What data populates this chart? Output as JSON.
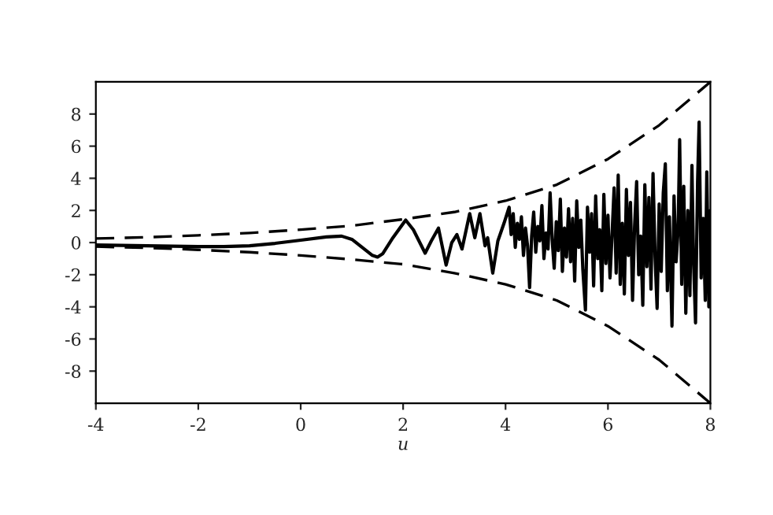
{
  "chart_data": {
    "type": "line",
    "xlabel": "u",
    "xlim": [
      -4,
      8
    ],
    "ylim": [
      -10,
      10
    ],
    "xticks": [
      -4,
      -2,
      0,
      2,
      4,
      6,
      8
    ],
    "yticks": [
      -8,
      -6,
      -4,
      -2,
      0,
      2,
      4,
      6,
      8
    ],
    "grid": false,
    "legend": false,
    "marker": "none",
    "series": [
      {
        "color": "#000000",
        "line_style": "dashed",
        "x": [
          -4,
          -3,
          -2,
          -1,
          0,
          1,
          2,
          3,
          4,
          5,
          6,
          7,
          8
        ],
        "values": [
          0.25,
          0.33,
          0.45,
          0.6,
          0.8,
          1.05,
          1.45,
          1.9,
          2.6,
          3.6,
          5.2,
          7.3,
          10
        ]
      },
      {
        "color": "#000000",
        "line_style": "dashed",
        "x": [
          -4,
          -3,
          -2,
          -1,
          0,
          1,
          2,
          3,
          4,
          5,
          6,
          7,
          8
        ],
        "values": [
          -0.25,
          -0.33,
          -0.45,
          -0.6,
          -0.8,
          -1.05,
          -1.35,
          -1.9,
          -2.6,
          -3.6,
          -5.2,
          -7.3,
          -10
        ]
      },
      {
        "color": "#000000",
        "line_style": "solid",
        "x": [
          -4,
          -3,
          -2,
          -1.5,
          -1,
          -0.5,
          0,
          0.5,
          0.8,
          1.0,
          1.2,
          1.4,
          1.5,
          1.6,
          1.8,
          2.05,
          2.2,
          2.43,
          2.55,
          2.69,
          2.84,
          2.95,
          3.05,
          3.15,
          3.3,
          3.4,
          3.5,
          3.6,
          3.65,
          3.75,
          3.85,
          3.97,
          4.07,
          4.11,
          4.15,
          4.19,
          4.23,
          4.27,
          4.31,
          4.35,
          4.39,
          4.43,
          4.47,
          4.51,
          4.55,
          4.59,
          4.63,
          4.67,
          4.71,
          4.75,
          4.79,
          4.83,
          4.87,
          4.91,
          4.95,
          4.99,
          5.03,
          5.07,
          5.11,
          5.15,
          5.19,
          5.23,
          5.27,
          5.31,
          5.35,
          5.39,
          5.43,
          5.47,
          5.51,
          5.56,
          5.6,
          5.64,
          5.68,
          5.72,
          5.76,
          5.8,
          5.84,
          5.88,
          5.92,
          5.96,
          6.0,
          6.04,
          6.08,
          6.12,
          6.16,
          6.2,
          6.24,
          6.28,
          6.32,
          6.36,
          6.4,
          6.44,
          6.48,
          6.52,
          6.56,
          6.6,
          6.64,
          6.68,
          6.72,
          6.76,
          6.8,
          6.84,
          6.88,
          6.92,
          6.96,
          7.0,
          7.04,
          7.08,
          7.12,
          7.16,
          7.2,
          7.25,
          7.29,
          7.33,
          7.37,
          7.4,
          7.44,
          7.48,
          7.52,
          7.56,
          7.6,
          7.64,
          7.67,
          7.71,
          7.75,
          7.78,
          7.82,
          7.86,
          7.9,
          7.93,
          7.97,
          8.0
        ],
        "values": [
          -0.15,
          -0.2,
          -0.25,
          -0.25,
          -0.2,
          -0.05,
          0.15,
          0.35,
          0.4,
          0.2,
          -0.3,
          -0.8,
          -0.9,
          -0.7,
          0.3,
          1.4,
          0.8,
          -0.66,
          0.1,
          0.9,
          -1.4,
          0,
          0.5,
          -0.4,
          1.8,
          0.3,
          1.8,
          -0.2,
          0.3,
          -1.9,
          0.1,
          1.2,
          2.2,
          0.5,
          1.8,
          -0.3,
          1.2,
          0.2,
          1.6,
          -0.8,
          0.9,
          -0.2,
          -2.8,
          0.4,
          1.9,
          -0.6,
          1.0,
          0.1,
          2.3,
          -1.0,
          0.6,
          -0.4,
          3.1,
          0.2,
          -1.6,
          1.3,
          -0.5,
          2.7,
          -1.8,
          0.9,
          -0.9,
          2.1,
          -1.2,
          1.5,
          -2.4,
          2.6,
          -0.3,
          1.4,
          -1.7,
          -4.2,
          2.2,
          -0.6,
          1.8,
          -2.7,
          2.9,
          -1.0,
          0.8,
          -3.0,
          3.0,
          -1.3,
          1.7,
          -2.2,
          0.5,
          3.4,
          -1.9,
          4.2,
          -2.6,
          1.2,
          -3.2,
          3.3,
          -0.8,
          2.5,
          -3.6,
          1.0,
          3.8,
          -2.0,
          0.4,
          -3.9,
          3.6,
          -1.5,
          2.8,
          -2.9,
          4.3,
          -0.9,
          -4.1,
          2.4,
          -1.8,
          3.1,
          4.9,
          -3.0,
          1.6,
          -5.2,
          2.9,
          -1.2,
          0.8,
          6.4,
          -2.6,
          3.5,
          -4.4,
          2.0,
          -3.3,
          4.8,
          -1.0,
          -5.0,
          3.8,
          7.5,
          -2.2,
          1.5,
          -3.6,
          4.4,
          -4.0,
          2.0
        ]
      }
    ]
  }
}
